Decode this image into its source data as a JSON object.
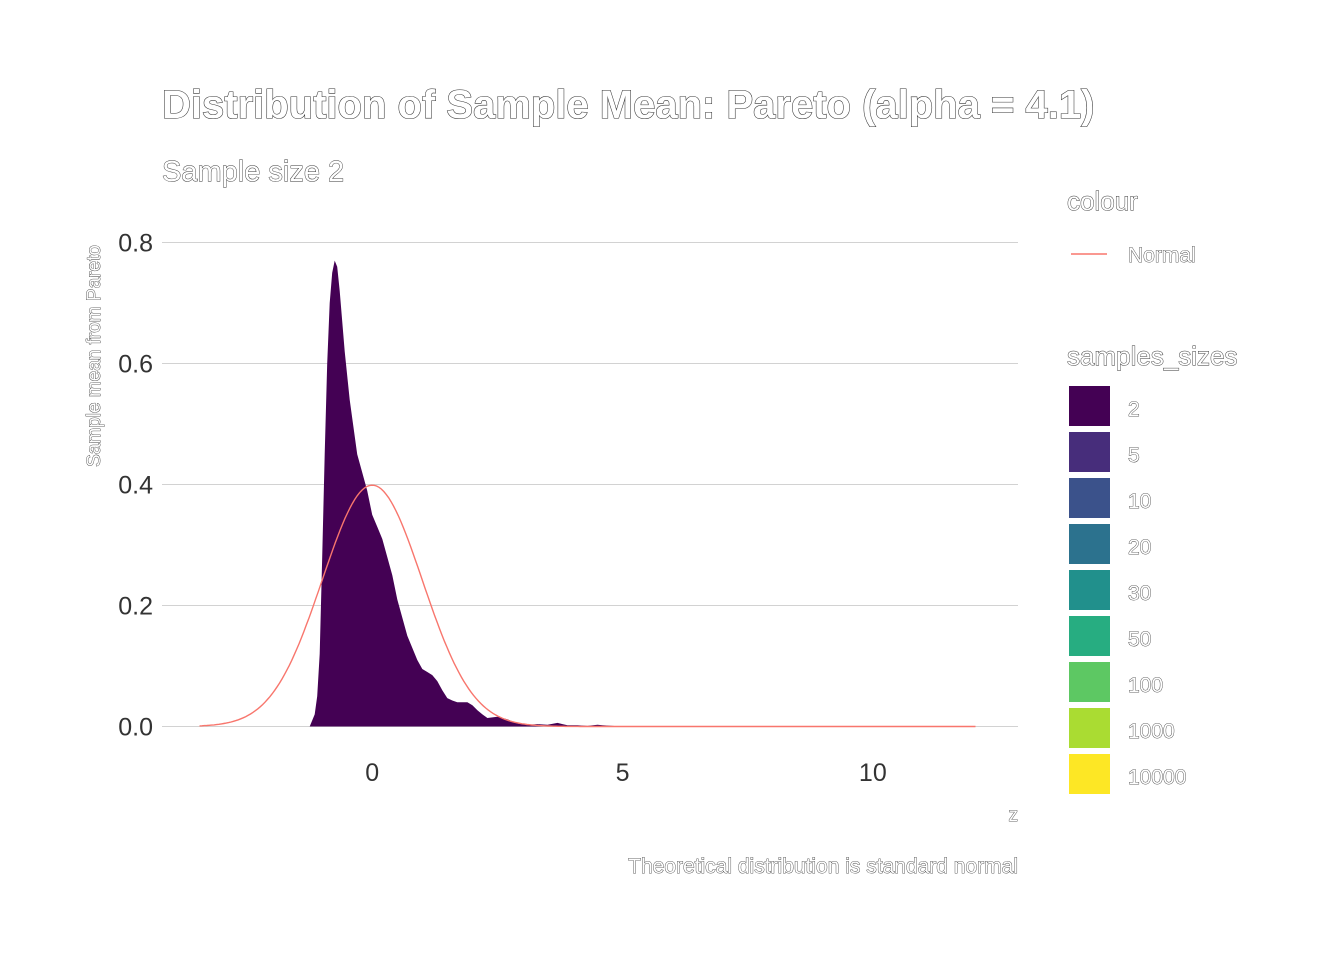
{
  "chart_data": {
    "type": "area",
    "title": "Distribution of Sample Mean: Pareto (alpha = 4.1)",
    "subtitle": "Sample size 2",
    "xlabel": "z",
    "ylabel": "Sample mean from Pareto",
    "caption": "Theoretical distribution is standard normal",
    "xlim": [
      -4.2,
      12.9
    ],
    "ylim": [
      0,
      0.8
    ],
    "x_ticks": [
      "0",
      "5",
      "10"
    ],
    "x_tick_values": [
      0,
      5,
      10
    ],
    "y_ticks": [
      "0.0",
      "0.2",
      "0.4",
      "0.6",
      "0.8"
    ],
    "y_tick_values": [
      0,
      0.2,
      0.4,
      0.6,
      0.8
    ],
    "grid": "horizontal",
    "legend_position": "right",
    "series": [
      {
        "name": "2",
        "kind": "density-area",
        "color": "#440154",
        "x": [
          -1.25,
          -1.15,
          -1.1,
          -1.05,
          -1.0,
          -0.95,
          -0.9,
          -0.85,
          -0.8,
          -0.75,
          -0.7,
          -0.65,
          -0.6,
          -0.55,
          -0.5,
          -0.45,
          -0.4,
          -0.35,
          -0.3,
          -0.2,
          -0.1,
          0.0,
          0.1,
          0.2,
          0.3,
          0.4,
          0.5,
          0.6,
          0.7,
          0.8,
          0.9,
          1.0,
          1.1,
          1.2,
          1.3,
          1.4,
          1.5,
          1.6,
          1.7,
          1.8,
          1.9,
          2.0,
          2.1,
          2.2,
          2.3,
          2.5,
          2.7,
          2.9,
          3.1,
          3.3,
          3.5,
          3.7,
          3.8,
          3.9,
          4.1,
          4.3,
          4.5,
          4.6,
          4.8,
          5.0
        ],
        "y": [
          0.0,
          0.02,
          0.05,
          0.12,
          0.28,
          0.45,
          0.6,
          0.7,
          0.75,
          0.77,
          0.76,
          0.72,
          0.67,
          0.62,
          0.58,
          0.54,
          0.51,
          0.48,
          0.45,
          0.42,
          0.39,
          0.35,
          0.33,
          0.31,
          0.28,
          0.25,
          0.21,
          0.18,
          0.15,
          0.13,
          0.11,
          0.095,
          0.09,
          0.085,
          0.075,
          0.06,
          0.047,
          0.043,
          0.04,
          0.04,
          0.04,
          0.035,
          0.027,
          0.02,
          0.014,
          0.016,
          0.012,
          0.005,
          0.003,
          0.004,
          0.003,
          0.006,
          0.004,
          0.002,
          0.002,
          0.001,
          0.003,
          0.002,
          0.001,
          0.0
        ]
      },
      {
        "name": "Normal",
        "kind": "line",
        "color": "#F8766D",
        "function": "standard-normal-pdf",
        "x_range": [
          -3.45,
          12.05
        ]
      }
    ],
    "legends": [
      {
        "title": "colour",
        "items": [
          {
            "label": "Normal",
            "color": "#F8766D",
            "symbol": "line"
          }
        ]
      },
      {
        "title": "samples_sizes",
        "items": [
          {
            "label": "2",
            "color": "#440154"
          },
          {
            "label": "5",
            "color": "#472D7B"
          },
          {
            "label": "10",
            "color": "#3B528B"
          },
          {
            "label": "20",
            "color": "#2C728E"
          },
          {
            "label": "30",
            "color": "#21908C"
          },
          {
            "label": "50",
            "color": "#27AD81"
          },
          {
            "label": "100",
            "color": "#5DC863"
          },
          {
            "label": "1000",
            "color": "#AADC32"
          },
          {
            "label": "10000",
            "color": "#FDE725"
          }
        ]
      }
    ]
  }
}
